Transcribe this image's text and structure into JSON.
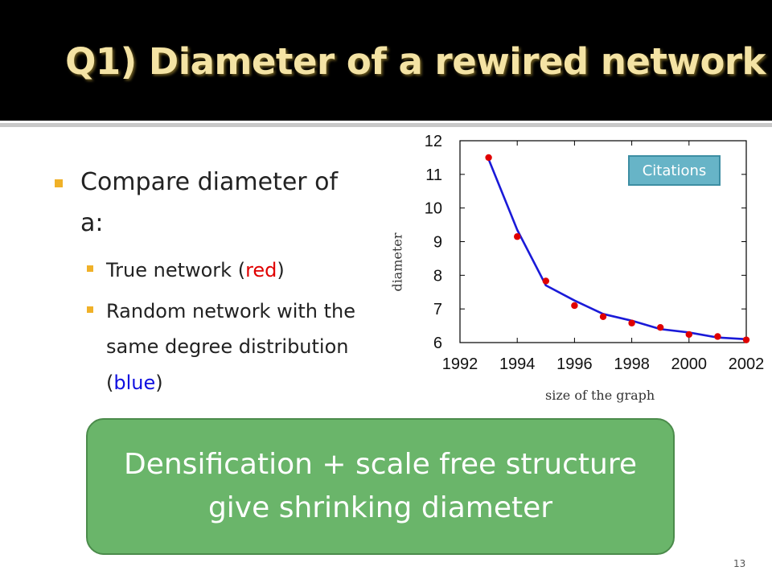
{
  "slide": {
    "title": "Q1) Diameter of a rewired network",
    "bullet": "Compare diameter of a:",
    "sub_items": [
      {
        "before": "True network (",
        "colored": "red",
        "after": ")",
        "color": "#e00000"
      },
      {
        "before": "Random network with the same degree distribution  (",
        "colored": "blue",
        "after": ")",
        "color": "#1010e0"
      }
    ],
    "callout": [
      "Densification + scale free structure",
      "give shrinking diameter"
    ],
    "page_number": "13"
  },
  "colors": {
    "title_bg": "#000000",
    "title_text": "#f4e3a4",
    "bullet_marker": "#f0b128",
    "callout_bg": "#6ab56a"
  },
  "chart_data": {
    "type": "line",
    "xlabel": "size of the graph",
    "ylabel": "diameter",
    "legend_label": "Citations",
    "legend_position": "top-right",
    "xlim": [
      1992,
      2002
    ],
    "ylim": [
      6,
      12
    ],
    "xticks": [
      1992,
      1994,
      1996,
      1998,
      2000,
      2002
    ],
    "yticks": [
      6,
      7,
      8,
      9,
      10,
      11,
      12
    ],
    "grid": false,
    "series": [
      {
        "label": "True network",
        "style": "points",
        "color": "#e00000",
        "x": [
          1993,
          1994,
          1995,
          1996,
          1997,
          1998,
          1999,
          2000,
          2001,
          2002
        ],
        "y": [
          11.5,
          9.15,
          7.83,
          7.1,
          6.77,
          6.58,
          6.45,
          6.24,
          6.18,
          6.08
        ]
      },
      {
        "label": "Random network with the same degree distribution",
        "style": "line",
        "color": "#1a1ad8",
        "x": [
          1993,
          1994,
          1995,
          1996,
          1997,
          1998,
          1999,
          2000,
          2001,
          2002
        ],
        "y": [
          11.45,
          9.35,
          7.7,
          7.25,
          6.85,
          6.65,
          6.4,
          6.3,
          6.15,
          6.1
        ]
      }
    ]
  }
}
